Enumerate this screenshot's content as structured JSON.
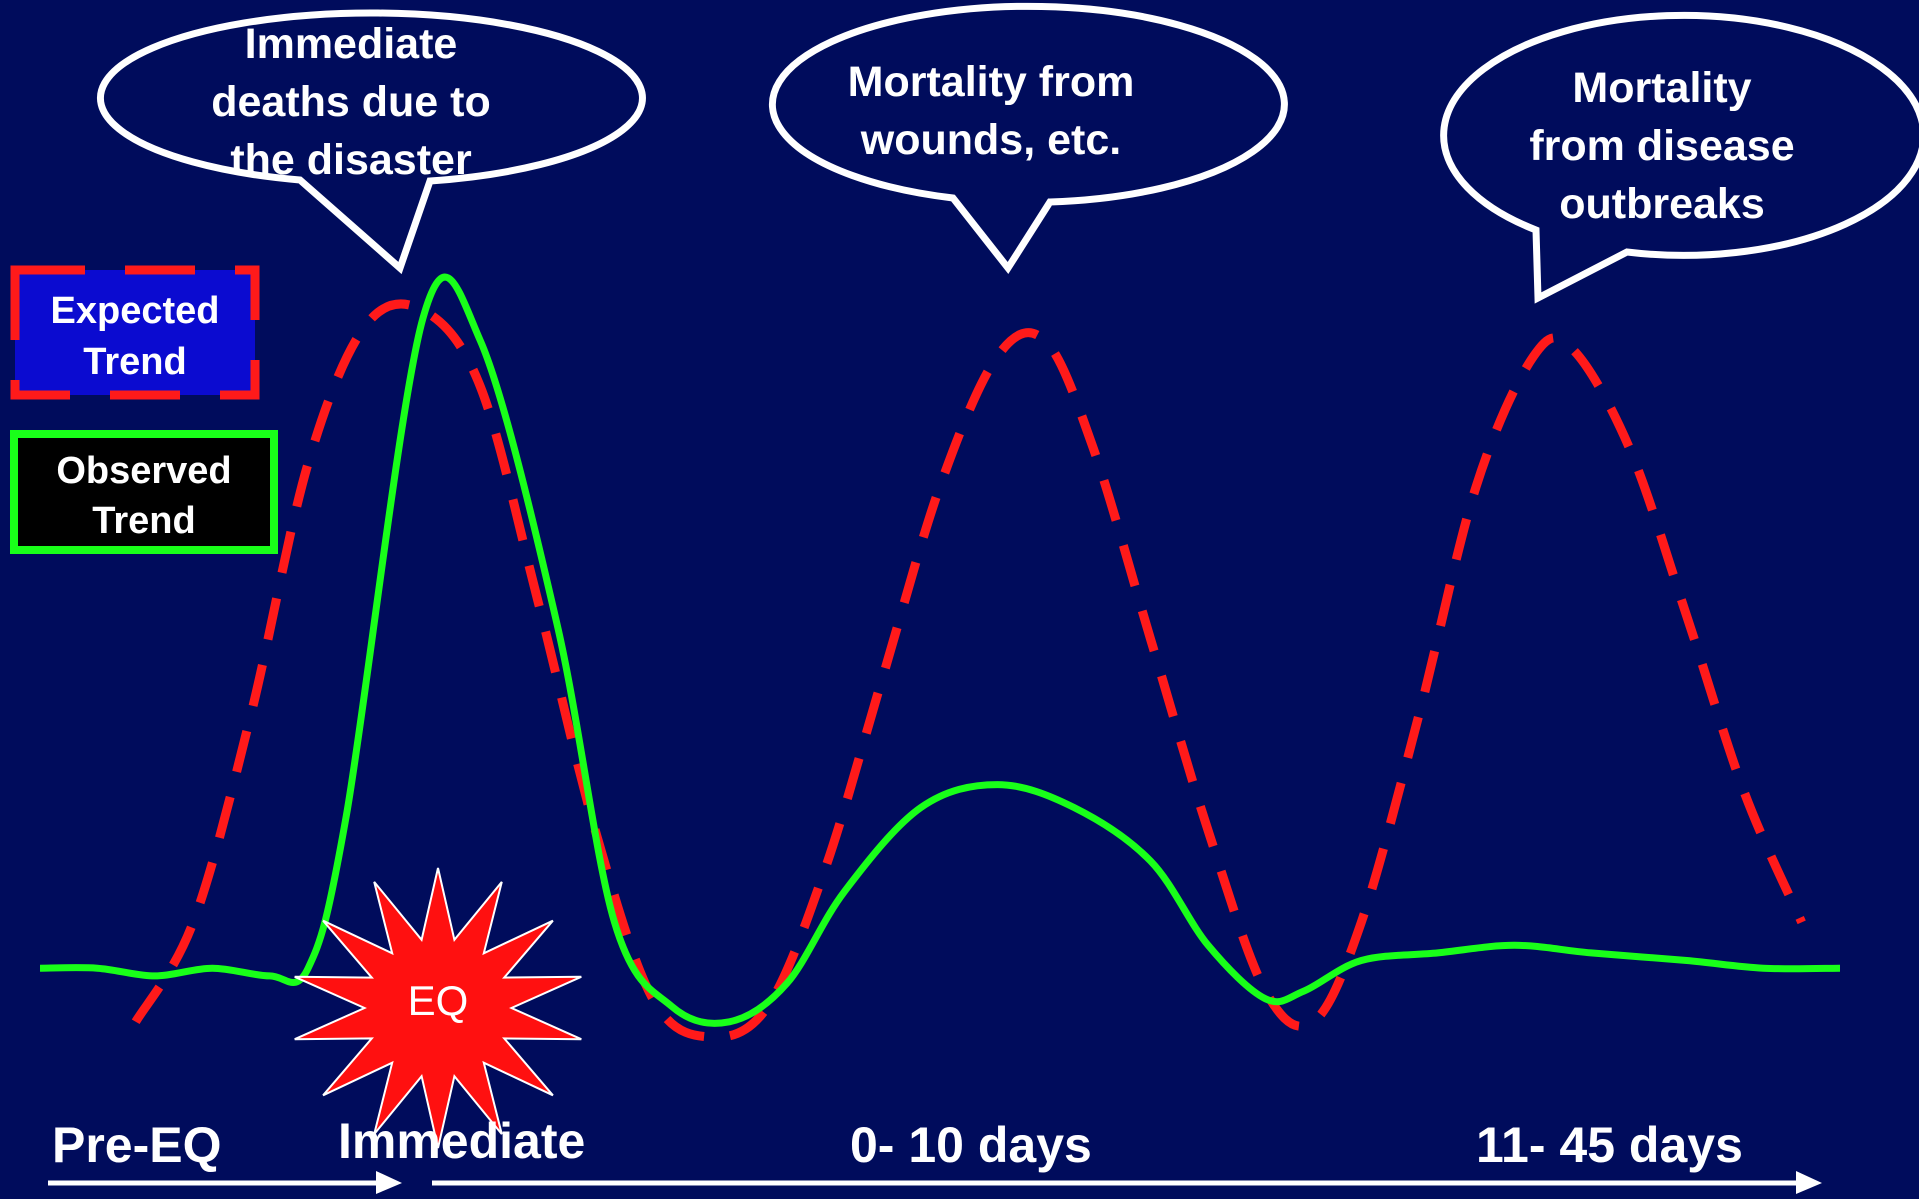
{
  "chart_data": {
    "type": "line",
    "title": "",
    "xlabel": "",
    "ylabel": "",
    "grid": false,
    "legend_position": "left",
    "phases": [
      "Pre-EQ",
      "Immediate",
      "0- 10 days",
      "11- 45 days"
    ],
    "callouts": [
      {
        "lines": [
          "Immediate",
          "deaths due to",
          "the disaster"
        ]
      },
      {
        "lines": [
          "Mortality from",
          "wounds, etc."
        ]
      },
      {
        "lines": [
          "Mortality",
          "from disease",
          "outbreaks"
        ]
      }
    ],
    "event_label": "EQ",
    "series": [
      {
        "name": "Expected Trend",
        "line_color": "#ff1a1a",
        "box_fill": "#0b0bd0",
        "style": "dashed",
        "values": [
          [
            0.5,
            0.05
          ],
          [
            0.8,
            0.18
          ],
          [
            1.1,
            0.45
          ],
          [
            1.4,
            0.78
          ],
          [
            1.7,
            0.96
          ],
          [
            2.0,
            0.98
          ],
          [
            2.3,
            0.88
          ],
          [
            2.6,
            0.6
          ],
          [
            2.9,
            0.3
          ],
          [
            3.2,
            0.08
          ],
          [
            3.5,
            0.03
          ],
          [
            3.8,
            0.07
          ],
          [
            4.1,
            0.25
          ],
          [
            4.4,
            0.5
          ],
          [
            4.7,
            0.75
          ],
          [
            5.0,
            0.92
          ],
          [
            5.25,
            0.94
          ],
          [
            5.5,
            0.8
          ],
          [
            5.8,
            0.55
          ],
          [
            6.1,
            0.3
          ],
          [
            6.4,
            0.09
          ],
          [
            6.65,
            0.05
          ],
          [
            6.9,
            0.18
          ],
          [
            7.2,
            0.45
          ],
          [
            7.5,
            0.75
          ],
          [
            7.8,
            0.92
          ],
          [
            8.0,
            0.93
          ],
          [
            8.3,
            0.8
          ],
          [
            8.6,
            0.58
          ],
          [
            8.9,
            0.35
          ],
          [
            9.2,
            0.18
          ]
        ]
      },
      {
        "name": "Observed Trend",
        "line_color": "#19ff19",
        "box_fill": "#000000",
        "style": "solid",
        "values": [
          [
            0.0,
            0.12
          ],
          [
            0.3,
            0.12
          ],
          [
            0.6,
            0.11
          ],
          [
            0.9,
            0.12
          ],
          [
            1.2,
            0.11
          ],
          [
            1.4,
            0.12
          ],
          [
            1.6,
            0.32
          ],
          [
            2.0,
            0.97
          ],
          [
            2.3,
            0.94
          ],
          [
            2.7,
            0.57
          ],
          [
            3.0,
            0.18
          ],
          [
            3.3,
            0.07
          ],
          [
            3.6,
            0.05
          ],
          [
            3.9,
            0.1
          ],
          [
            4.2,
            0.22
          ],
          [
            4.6,
            0.33
          ],
          [
            5.0,
            0.36
          ],
          [
            5.4,
            0.33
          ],
          [
            5.8,
            0.26
          ],
          [
            6.1,
            0.15
          ],
          [
            6.4,
            0.08
          ],
          [
            6.6,
            0.09
          ],
          [
            6.9,
            0.13
          ],
          [
            7.3,
            0.14
          ],
          [
            7.7,
            0.15
          ],
          [
            8.1,
            0.14
          ],
          [
            8.6,
            0.13
          ],
          [
            9.0,
            0.12
          ],
          [
            9.4,
            0.12
          ]
        ]
      }
    ]
  }
}
